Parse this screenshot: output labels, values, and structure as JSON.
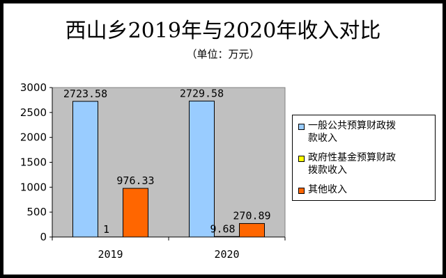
{
  "title": "西山乡2019年与2020年收入对比",
  "subtitle": "（单位：万元）",
  "chart_data": {
    "type": "bar",
    "title": "西山乡2019年与2020年收入对比",
    "subtitle": "（单位：万元）",
    "categories": [
      "2019",
      "2020"
    ],
    "ylim": [
      0,
      3000
    ],
    "yticks": [
      "0",
      "500",
      "1000",
      "1500",
      "2000",
      "2500",
      "3000"
    ],
    "grid": false,
    "legend_position": "right",
    "series": [
      {
        "name": "一般公共预算财政拨款收入",
        "values": [
          2723.58,
          2729.58
        ],
        "labels": [
          "2723.58",
          "2729.58"
        ],
        "color": "#99CCFF"
      },
      {
        "name": "政府性基金预算财政拨款收入",
        "values": [
          1,
          9.68
        ],
        "labels": [
          "1",
          "9.68"
        ],
        "color": "#FFFF00"
      },
      {
        "name": "其他收入",
        "values": [
          976.33,
          270.89
        ],
        "labels": [
          "976.33",
          "270.89"
        ],
        "color": "#FF6600"
      }
    ],
    "plot_background": "#C0C0C0"
  },
  "legend": {
    "items": [
      {
        "line1": "一般公共预算财政拨",
        "line2": "款收入"
      },
      {
        "line1": "政府性基金预算财政",
        "line2": "拨款收入"
      },
      {
        "line1": "其他收入",
        "line2": ""
      }
    ]
  }
}
